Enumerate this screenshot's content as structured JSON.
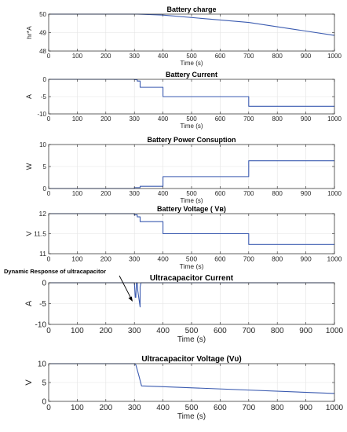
{
  "figure": {
    "annotation": "Dynamic Response of ultracapacitor"
  },
  "chart_data": [
    {
      "type": "line",
      "title": "Battery  charge",
      "xlabel": "Time (s)",
      "ylabel": "hr*A",
      "xlim": [
        0,
        1000
      ],
      "ylim": [
        48,
        50
      ],
      "xticks": [
        "0",
        "100",
        "200",
        "300",
        "400",
        "500",
        "600",
        "700",
        "800",
        "900",
        "1000"
      ],
      "yticks": [
        "48",
        "49",
        "50"
      ],
      "grid": true,
      "color": "#3b5bb0",
      "x": [
        0,
        300,
        310,
        330,
        400,
        700,
        1000
      ],
      "y": [
        50,
        50,
        50,
        49.99,
        49.95,
        49.55,
        48.85
      ]
    },
    {
      "type": "line",
      "title": "Battery Current",
      "xlabel": "Time (s)",
      "ylabel": "A",
      "xlim": [
        0,
        1000
      ],
      "ylim": [
        -10,
        0
      ],
      "xticks": [
        "0",
        "100",
        "200",
        "300",
        "400",
        "500",
        "600",
        "700",
        "800",
        "900",
        "1000"
      ],
      "yticks": [
        "-10",
        "-5",
        "0"
      ],
      "grid": true,
      "color": "#3b5bb0",
      "x": [
        0,
        300,
        300,
        310,
        310,
        320,
        320,
        400,
        400,
        700,
        700,
        1000
      ],
      "y": [
        0,
        0,
        -0.1,
        -0.1,
        -0.5,
        -0.5,
        -2.3,
        -2.3,
        -5,
        -5,
        -7.8,
        -7.8
      ]
    },
    {
      "type": "line",
      "title": "Battery Power Consuption",
      "xlabel": "Time (s)",
      "ylabel": "W",
      "xlim": [
        0,
        1000
      ],
      "ylim": [
        0,
        10
      ],
      "xticks": [
        "0",
        "100",
        "200",
        "300",
        "400",
        "500",
        "600",
        "700",
        "800",
        "900",
        "1000"
      ],
      "yticks": [
        "0",
        "5",
        "10"
      ],
      "grid": true,
      "color": "#3b5bb0",
      "x": [
        0,
        300,
        300,
        320,
        320,
        400,
        400,
        700,
        700,
        1000
      ],
      "y": [
        0,
        0,
        0.2,
        0.2,
        0.5,
        0.5,
        2.7,
        2.7,
        6.3,
        6.3
      ]
    },
    {
      "type": "line",
      "title": "Battery Voltage ( Vʙ)",
      "xlabel": "Time (s)",
      "ylabel": "V",
      "xlim": [
        0,
        1000
      ],
      "ylim": [
        11,
        12
      ],
      "xticks": [
        "0",
        "100",
        "200",
        "300",
        "400",
        "500",
        "600",
        "700",
        "800",
        "900",
        "1000"
      ],
      "yticks": [
        "11",
        "11.5",
        "12"
      ],
      "grid": true,
      "color": "#3b5bb0",
      "x": [
        0,
        300,
        300,
        310,
        310,
        320,
        320,
        400,
        400,
        700,
        700,
        1000
      ],
      "y": [
        12,
        12,
        11.97,
        11.97,
        11.92,
        11.92,
        11.8,
        11.8,
        11.5,
        11.5,
        11.23,
        11.23
      ]
    },
    {
      "type": "line",
      "title": "Ultracapacitor Current",
      "xlabel": "Time (s)",
      "ylabel": "A",
      "xlim": [
        0,
        1000
      ],
      "ylim": [
        -10,
        0
      ],
      "xticks": [
        "0",
        "100",
        "200",
        "300",
        "400",
        "500",
        "600",
        "700",
        "800",
        "900",
        "1000"
      ],
      "yticks": [
        "-10",
        "-5",
        "0"
      ],
      "grid": true,
      "color": "#3b5bb0",
      "x": [
        0,
        300,
        303,
        305,
        307,
        310,
        312,
        320,
        320,
        323,
        1000
      ],
      "y": [
        0,
        0,
        -3.5,
        -3.5,
        0,
        0,
        -2,
        -5.8,
        -1,
        0,
        0
      ]
    },
    {
      "type": "line",
      "title": "Ultracapacitor Voltage (Vᴜ)",
      "xlabel": "Time (s)",
      "ylabel": "V",
      "xlim": [
        0,
        1000
      ],
      "ylim": [
        0,
        10
      ],
      "xticks": [
        "0",
        "100",
        "200",
        "300",
        "400",
        "500",
        "600",
        "700",
        "800",
        "900",
        "1000"
      ],
      "yticks": [
        "0",
        "5",
        "10"
      ],
      "grid": true,
      "color": "#3b5bb0",
      "x": [
        0,
        300,
        305,
        315,
        325,
        400,
        1000
      ],
      "y": [
        10,
        10,
        9.7,
        7,
        4.1,
        3.9,
        2.1
      ]
    }
  ]
}
